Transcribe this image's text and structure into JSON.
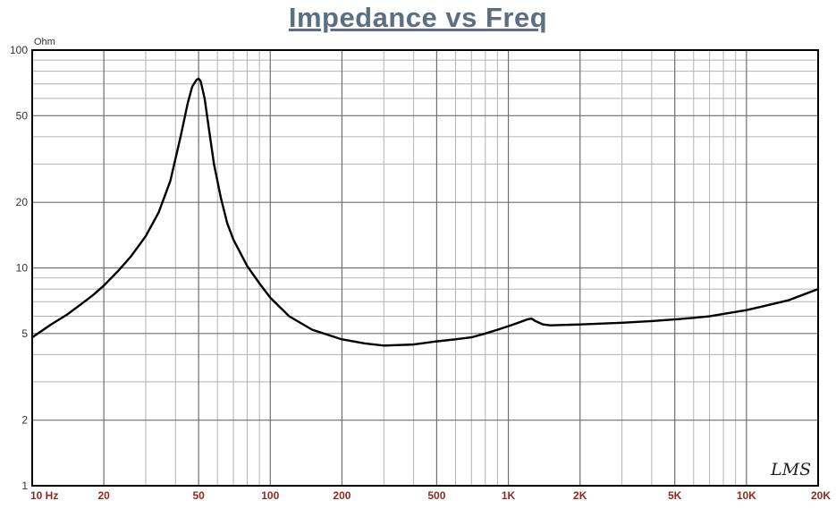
{
  "chart_data": {
    "type": "line",
    "title": "Impedance vs Freq",
    "ylabel": "Ohm",
    "xlabel": "",
    "x_scale": "log",
    "y_scale": "log",
    "xlim": [
      10,
      20000
    ],
    "ylim": [
      1,
      100
    ],
    "grid": true,
    "x_ticks": [
      {
        "value": 10,
        "label": "10  Hz"
      },
      {
        "value": 20,
        "label": "20"
      },
      {
        "value": 50,
        "label": "50"
      },
      {
        "value": 100,
        "label": "100"
      },
      {
        "value": 200,
        "label": "200"
      },
      {
        "value": 500,
        "label": "500"
      },
      {
        "value": 1000,
        "label": "1K"
      },
      {
        "value": 2000,
        "label": "2K"
      },
      {
        "value": 5000,
        "label": "5K"
      },
      {
        "value": 10000,
        "label": "10K"
      },
      {
        "value": 20000,
        "label": "20K"
      }
    ],
    "y_ticks": [
      {
        "value": 100,
        "label": "100"
      },
      {
        "value": 50,
        "label": "50"
      },
      {
        "value": 20,
        "label": "20"
      },
      {
        "value": 10,
        "label": "10"
      },
      {
        "value": 5,
        "label": "5"
      },
      {
        "value": 2,
        "label": "2"
      },
      {
        "value": 1,
        "label": "1"
      }
    ],
    "line_color": "#000000",
    "series": [
      {
        "x": [
          10,
          12,
          14,
          16,
          18,
          20,
          23,
          26,
          30,
          34,
          38,
          42,
          45,
          47,
          49,
          50,
          51,
          53,
          55,
          58,
          62,
          66,
          70,
          80,
          90,
          100,
          120,
          150,
          200,
          250,
          300,
          400,
          500,
          600,
          700,
          800,
          900,
          1000,
          1100,
          1200,
          1250,
          1300,
          1400,
          1500,
          2000,
          3000,
          4000,
          5000,
          6000,
          7000,
          8000,
          10000,
          12000,
          15000,
          20000
        ],
        "y": [
          4.8,
          5.5,
          6.1,
          6.8,
          7.5,
          8.3,
          9.7,
          11.3,
          14,
          18,
          25,
          40,
          57,
          68,
          73,
          74,
          72,
          60,
          45,
          30,
          21,
          16,
          13.5,
          10.2,
          8.5,
          7.3,
          6.0,
          5.2,
          4.7,
          4.5,
          4.4,
          4.45,
          4.6,
          4.7,
          4.8,
          5.0,
          5.2,
          5.4,
          5.6,
          5.8,
          5.85,
          5.7,
          5.5,
          5.45,
          5.5,
          5.6,
          5.7,
          5.8,
          5.9,
          6.0,
          6.15,
          6.4,
          6.7,
          7.1,
          8.0
        ]
      }
    ]
  },
  "logo_text": "LMS"
}
